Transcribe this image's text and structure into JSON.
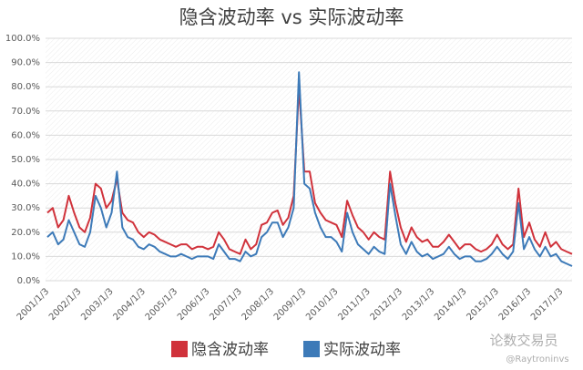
{
  "chart_data": {
    "type": "line",
    "title": "隐含波动率 vs 实际波动率",
    "categories": [
      "2001/1/3",
      null,
      null,
      null,
      null,
      null,
      "2002/1/3",
      null,
      null,
      null,
      null,
      null,
      "2003/1/3",
      null,
      null,
      null,
      null,
      null,
      "2004/1/3",
      null,
      null,
      null,
      null,
      null,
      "2005/1/3",
      null,
      null,
      null,
      null,
      null,
      "2006/1/3",
      null,
      null,
      null,
      null,
      null,
      "2007/1/3",
      null,
      null,
      null,
      null,
      null,
      "2008/1/3",
      null,
      null,
      null,
      null,
      null,
      "2009/1/3",
      null,
      null,
      null,
      null,
      null,
      "2010/1/3",
      null,
      null,
      null,
      null,
      null,
      "2011/1/3",
      null,
      null,
      null,
      null,
      null,
      "2012/1/3",
      null,
      null,
      null,
      null,
      null,
      "2013/1/3",
      null,
      null,
      null,
      null,
      null,
      "2014/1/3",
      null,
      null,
      null,
      null,
      null,
      "2015/1/3",
      null,
      null,
      null,
      null,
      null,
      "2016/1/3",
      null,
      null,
      null,
      null,
      null,
      "2017/1/3",
      null,
      null
    ],
    "series": [
      {
        "name": "隐含波动率",
        "color": "#d0323b",
        "values": [
          28,
          30,
          22,
          25,
          35,
          28,
          22,
          20,
          26,
          40,
          38,
          30,
          33,
          42,
          28,
          25,
          24,
          20,
          18,
          20,
          19,
          17,
          16,
          15,
          14,
          15,
          15,
          13,
          14,
          14,
          13,
          14,
          20,
          17,
          13,
          12,
          11,
          17,
          13,
          15,
          23,
          24,
          28,
          29,
          23,
          26,
          35,
          80,
          45,
          45,
          32,
          28,
          25,
          24,
          23,
          18,
          33,
          27,
          22,
          20,
          17,
          20,
          18,
          17,
          45,
          32,
          22,
          16,
          22,
          18,
          16,
          17,
          14,
          14,
          16,
          19,
          16,
          13,
          15,
          15,
          13,
          12,
          13,
          15,
          19,
          15,
          13,
          15,
          38,
          18,
          24,
          17,
          14,
          20,
          14,
          16,
          13,
          12,
          11
        ]
      },
      {
        "name": "实际波动率",
        "color": "#3d7ab8",
        "values": [
          18,
          20,
          15,
          17,
          25,
          20,
          15,
          14,
          20,
          35,
          30,
          22,
          28,
          45,
          22,
          18,
          17,
          14,
          13,
          15,
          14,
          12,
          11,
          10,
          10,
          11,
          10,
          9,
          10,
          10,
          10,
          9,
          15,
          12,
          9,
          9,
          8,
          12,
          10,
          11,
          18,
          20,
          24,
          24,
          18,
          22,
          30,
          86,
          40,
          38,
          28,
          22,
          18,
          18,
          16,
          12,
          28,
          20,
          15,
          13,
          11,
          14,
          12,
          11,
          40,
          27,
          15,
          11,
          16,
          12,
          10,
          11,
          9,
          10,
          11,
          14,
          11,
          9,
          10,
          10,
          8,
          8,
          9,
          11,
          14,
          11,
          9,
          12,
          32,
          13,
          18,
          13,
          10,
          14,
          10,
          11,
          8,
          7,
          6
        ]
      }
    ],
    "ylim": [
      0,
      100
    ],
    "yticks": [
      {
        "value": 0,
        "label": "0.0%"
      },
      {
        "value": 10,
        "label": "10.0%"
      },
      {
        "value": 20,
        "label": "20.0%"
      },
      {
        "value": 30,
        "label": "30.0%"
      },
      {
        "value": 40,
        "label": "40.0%"
      },
      {
        "value": 50,
        "label": "50.0%"
      },
      {
        "value": 60,
        "label": "60.0%"
      },
      {
        "value": 70,
        "label": "70.0%"
      },
      {
        "value": 80,
        "label": "80.0%"
      },
      {
        "value": 90,
        "label": "90.0%"
      },
      {
        "value": 100,
        "label": "100.0%"
      }
    ],
    "grid": true,
    "watermark": [
      "论数交易员",
      "@Raytroninvs"
    ]
  }
}
